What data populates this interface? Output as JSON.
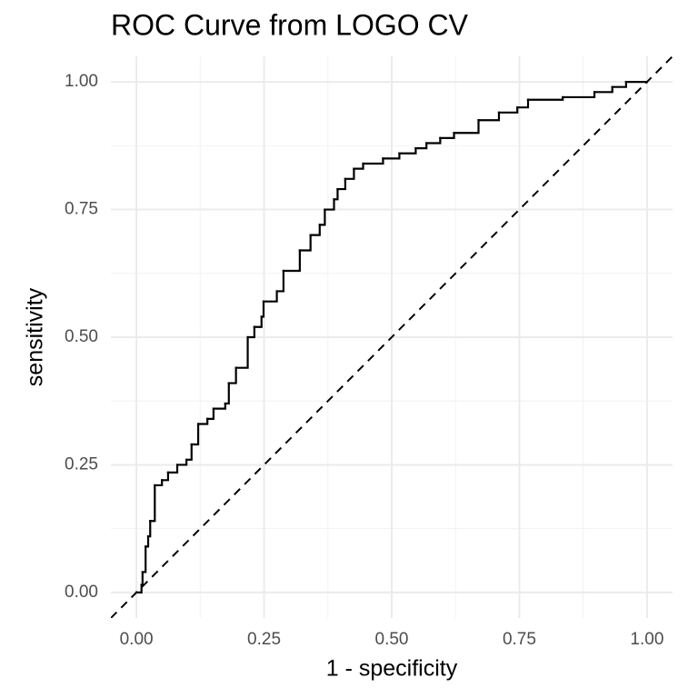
{
  "chart_data": {
    "type": "step",
    "title": "ROC Curve from LOGO CV",
    "xlabel": "1 - specificity",
    "ylabel": "sensitivity",
    "x": [
      0,
      0.01,
      0.012,
      0.018,
      0.023,
      0.027,
      0.036,
      0.05,
      0.062,
      0.08,
      0.098,
      0.108,
      0.121,
      0.139,
      0.151,
      0.174,
      0.181,
      0.195,
      0.218,
      0.231,
      0.245,
      0.249,
      0.275,
      0.288,
      0.32,
      0.341,
      0.359,
      0.369,
      0.387,
      0.394,
      0.409,
      0.426,
      0.444,
      0.483,
      0.515,
      0.547,
      0.568,
      0.595,
      0.622,
      0.67,
      0.71,
      0.746,
      0.767,
      0.835,
      0.897,
      0.932,
      0.959,
      1
    ],
    "values": [
      0,
      0.015,
      0.04,
      0.09,
      0.11,
      0.14,
      0.21,
      0.22,
      0.235,
      0.25,
      0.26,
      0.29,
      0.33,
      0.34,
      0.36,
      0.37,
      0.41,
      0.44,
      0.5,
      0.52,
      0.54,
      0.57,
      0.59,
      0.63,
      0.67,
      0.7,
      0.72,
      0.75,
      0.77,
      0.79,
      0.81,
      0.83,
      0.84,
      0.85,
      0.86,
      0.87,
      0.88,
      0.89,
      0.9,
      0.925,
      0.94,
      0.95,
      0.965,
      0.97,
      0.98,
      0.99,
      1,
      1
    ],
    "color": "#000000",
    "reference_line": {
      "intercept": 0,
      "slope": 1,
      "color": "#000000",
      "dashed": true
    },
    "xlim": [
      -0.05,
      1.05
    ],
    "ylim": [
      -0.05,
      1.05
    ],
    "xticks": [
      {
        "value": 0,
        "label": "0.00"
      },
      {
        "value": 0.25,
        "label": "0.25"
      },
      {
        "value": 0.5,
        "label": "0.50"
      },
      {
        "value": 0.75,
        "label": "0.75"
      },
      {
        "value": 1,
        "label": "1.00"
      }
    ],
    "yticks": [
      {
        "value": 0,
        "label": "0.00"
      },
      {
        "value": 0.25,
        "label": "0.25"
      },
      {
        "value": 0.5,
        "label": "0.50"
      },
      {
        "value": 0.75,
        "label": "0.75"
      },
      {
        "value": 1,
        "label": "1.00"
      }
    ],
    "grid": true,
    "minor_grid": true
  }
}
